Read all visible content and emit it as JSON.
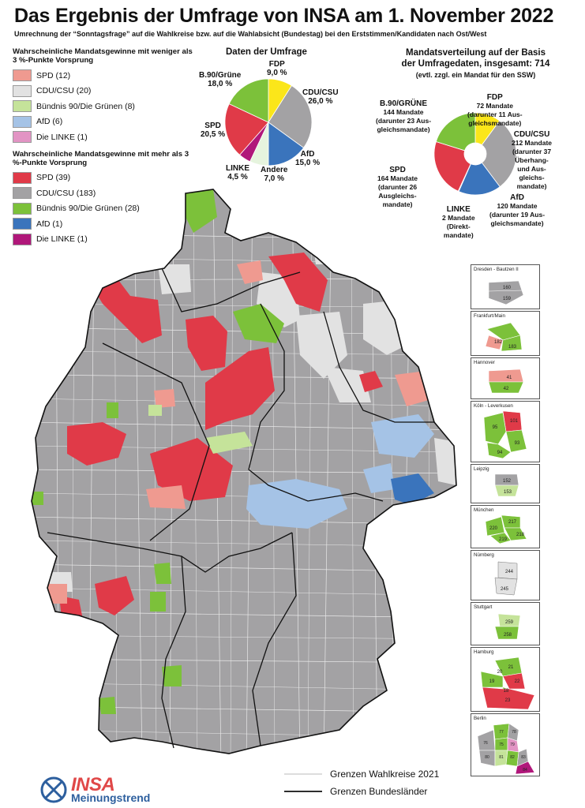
{
  "header": {
    "title": "Das Ergebnis der Umfrage von INSA am 1. November 2022",
    "subtitle": "Umrechnung der “Sonntagsfrage” auf die Wahlkreise bzw. auf die Wahlabsicht (Bundestag) bei den Erststimmen/Kandidaten nach Ost/West"
  },
  "legend": {
    "weak": {
      "heading": "Wahrscheinliche Mandatsgewinne mit weniger als 3 %-Punkte Vorsprung",
      "items": [
        {
          "label": "SPD (12)",
          "color": "#ef9a90"
        },
        {
          "label": "CDU/CSU (20)",
          "color": "#e2e2e2"
        },
        {
          "label": "Bündnis 90/Die Grünen (8)",
          "color": "#c5e39a"
        },
        {
          "label": "AfD (6)",
          "color": "#a5c3e6"
        },
        {
          "label": "Die LINKE (1)",
          "color": "#e294c4"
        }
      ]
    },
    "strong": {
      "heading": "Wahrscheinliche Mandatsgewinne mit mehr als 3 %-Punkte Vorsprung",
      "items": [
        {
          "label": "SPD (39)",
          "color": "#e03a48"
        },
        {
          "label": "CDU/CSU (183)",
          "color": "#a3a2a4"
        },
        {
          "label": "Bündnis 90/Die Grünen (28)",
          "color": "#7cc13a"
        },
        {
          "label": "AfD (1)",
          "color": "#3a74bc"
        },
        {
          "label": "Die LINKE (1)",
          "color": "#b0177a"
        }
      ]
    }
  },
  "poll": {
    "title": "Daten der Umfrage",
    "labels": {
      "fdp": {
        "name": "FDP",
        "value": "9,0 %"
      },
      "cdu": {
        "name": "CDU/CSU",
        "value": "26,0 %"
      },
      "afd": {
        "name": "AfD",
        "value": "15,0 %"
      },
      "andere": {
        "name": "Andere",
        "value": "7,0 %"
      },
      "linke": {
        "name": "LINKE",
        "value": "4,5 %"
      },
      "spd": {
        "name": "SPD",
        "value": "20,5 %"
      },
      "gruene": {
        "name": "B.90/Grüne",
        "value": "18,0 %"
      }
    }
  },
  "seats": {
    "title_line1": "Mandatsverteilung auf der Basis",
    "title_line2": "der Umfragedaten, insgesamt: 714",
    "note": "(evtl. zzgl. ein Mandat für den SSW)",
    "labels": {
      "fdp": {
        "name": "FDP",
        "line1": "72 Mandate",
        "line2": "(darunter 11 Aus-",
        "line3": "gleichsmandate)"
      },
      "cdu": {
        "name": "CDU/CSU",
        "line1": "212 Mandate",
        "line2": "(darunter 37",
        "line3": "Überhang-",
        "line4": "und Aus-",
        "line5": "gleichs-",
        "line6": "mandate)"
      },
      "afd": {
        "name": "AfD",
        "line1": "120 Mandate",
        "line2": "(darunter 19 Aus-",
        "line3": "gleichsmandate)"
      },
      "linke": {
        "name": "LINKE",
        "line1": "2 Mandate",
        "line2": "(Direkt-",
        "line3": "mandate)"
      },
      "spd": {
        "name": "SPD",
        "line1": "164 Mandate",
        "line2": "(darunter 26",
        "line3": "Ausgleichs-",
        "line4": "mandate)"
      },
      "gruene": {
        "name": "B.90/GRÜNE",
        "line1": "144 Mandate",
        "line2": "(darunter 23 Aus-",
        "line3": "gleichsmandate)"
      }
    }
  },
  "chart_data": [
    {
      "type": "pie",
      "title": "Daten der Umfrage",
      "categories": [
        "FDP",
        "CDU/CSU",
        "AfD",
        "Andere",
        "LINKE",
        "SPD",
        "B.90/Grüne"
      ],
      "values": [
        9.0,
        26.0,
        15.0,
        7.0,
        4.5,
        20.5,
        18.0
      ],
      "colors": [
        "#fbe61a",
        "#a3a2a4",
        "#3a74bc",
        "#e6f4de",
        "#b0177a",
        "#e03a48",
        "#7cc13a"
      ]
    },
    {
      "type": "pie",
      "title": "Mandatsverteilung auf der Basis der Umfragedaten, insgesamt: 714",
      "categories": [
        "FDP",
        "CDU/CSU",
        "AfD",
        "LINKE",
        "SPD",
        "B.90/GRÜNE"
      ],
      "values": [
        72,
        212,
        120,
        2,
        164,
        144
      ],
      "colors": [
        "#fbe61a",
        "#a3a2a4",
        "#3a74bc",
        "#b0177a",
        "#e03a48",
        "#7cc13a"
      ]
    }
  ],
  "insets": [
    {
      "name": "Dresden - Bautzen II",
      "numbers": [
        "160",
        "159"
      ]
    },
    {
      "name": "Frankfurt/Main",
      "numbers": [
        "182",
        "183"
      ]
    },
    {
      "name": "Hannover",
      "numbers": [
        "41",
        "42"
      ]
    },
    {
      "name": "Köln - Leverkusen",
      "numbers": [
        "101",
        "95",
        "93",
        "94"
      ]
    },
    {
      "name": "Leipzig",
      "numbers": [
        "152",
        "153"
      ]
    },
    {
      "name": "München",
      "numbers": [
        "217",
        "220",
        "218",
        "219"
      ]
    },
    {
      "name": "Nürnberg",
      "numbers": [
        "244",
        "245"
      ]
    },
    {
      "name": "Stuttgart",
      "numbers": [
        "259",
        "258"
      ]
    },
    {
      "name": "Hamburg",
      "numbers": [
        "21",
        "20",
        "22",
        "19",
        "18",
        "23"
      ]
    },
    {
      "name": "Berlin",
      "numbers": [
        "76",
        "77",
        "78",
        "75",
        "79",
        "80",
        "81",
        "82",
        "83",
        "84"
      ]
    }
  ],
  "map_legend": {
    "wahlkreise": "Grenzen Wahlkreise 2021",
    "laender": "Grenzen Bundesländer"
  },
  "logo": {
    "name": "INSA",
    "tagline": "Meinungstrend"
  }
}
